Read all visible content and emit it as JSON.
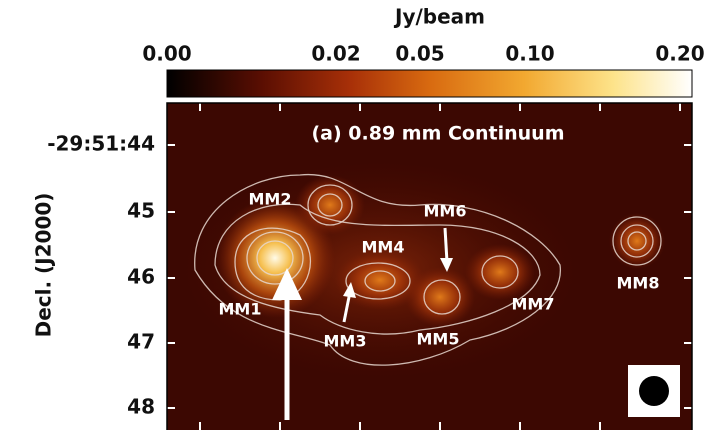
{
  "colorbar": {
    "label": "Jy/beam",
    "ticks": [
      "0.00",
      "0.02",
      "0.05",
      "0.10",
      "0.20"
    ]
  },
  "panel": {
    "title": "(a) 0.89 mm Continuum"
  },
  "y_axis": {
    "label": "Decl. (J2000)",
    "ticks": [
      "-29:51:44",
      "45",
      "46",
      "47",
      "48"
    ]
  },
  "sources": [
    "MM1",
    "MM2",
    "MM3",
    "MM4",
    "MM5",
    "MM6",
    "MM7",
    "MM8"
  ]
}
